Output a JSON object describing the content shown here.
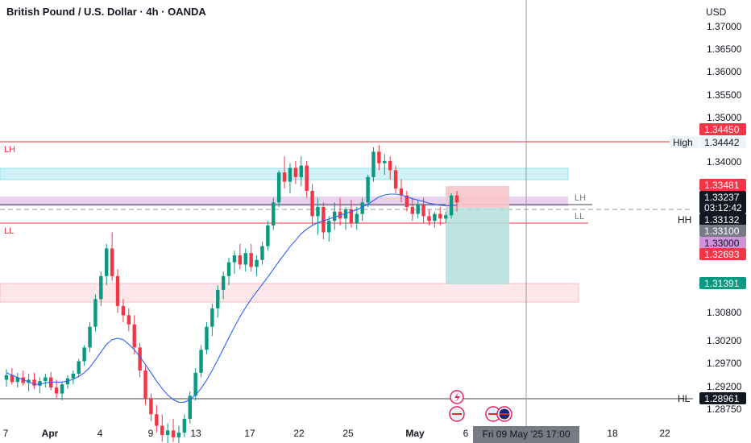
{
  "header": {
    "title": "British Pound / U.S. Dollar · 4h · OANDA",
    "currency": "USD"
  },
  "chart_data": {
    "type": "candlestick",
    "price_ticks": [
      "1.37000",
      "1.36500",
      "1.36000",
      "1.35500",
      "1.35000",
      "1.34000",
      "1.30800",
      "1.30200",
      "1.29700",
      "1.29200",
      "1.28750"
    ],
    "price_tick_values": [
      1.37,
      1.365,
      1.36,
      1.355,
      1.35,
      1.34,
      1.308,
      1.302,
      1.297,
      1.292,
      1.2875
    ],
    "date_ticks": [
      {
        "label": "7",
        "day": 0
      },
      {
        "label": "Apr",
        "day": 1
      },
      {
        "label": "4",
        "day": 4
      },
      {
        "label": "9",
        "day": 9
      },
      {
        "label": "13",
        "day": 13
      },
      {
        "label": "17",
        "day": 17
      },
      {
        "label": "22",
        "day": 22
      },
      {
        "label": "25",
        "day": 25
      },
      {
        "label": "May",
        "day": 31
      },
      {
        "label": "6",
        "day": 36
      },
      {
        "label": "18",
        "day": 48
      },
      {
        "label": "22",
        "day": 52
      }
    ],
    "price_badges": [
      {
        "value": "1.34450",
        "bg": "#f23645",
        "fg": "#ffffff"
      },
      {
        "value": "1.34442",
        "bg": "#f0f3fa",
        "fg": "#131722",
        "prefix": "High"
      },
      {
        "value": "1.33481",
        "bg": "#f23645",
        "fg": "#ffffff"
      },
      {
        "value": "1.33237",
        "bg": "#131722",
        "fg": "#ffffff"
      },
      {
        "value": "03:12:42",
        "bg": "#131722",
        "fg": "#ffffff"
      },
      {
        "value": "1.33132",
        "bg": "#131722",
        "fg": "#ffffff",
        "prefix": "HH"
      },
      {
        "value": "1.33100",
        "bg": "#787b86",
        "fg": "#ffffff"
      },
      {
        "value": "1.33000",
        "bg": "#ce93d8",
        "fg": "#131722"
      },
      {
        "value": "1.32693",
        "bg": "#f23645",
        "fg": "#ffffff"
      },
      {
        "value": "1.31391",
        "bg": "#089981",
        "fg": "#ffffff"
      },
      {
        "value": "1.28961",
        "bg": "#131722",
        "fg": "#ffffff",
        "prefix": "HL"
      }
    ],
    "annotations": [
      {
        "text": "LH",
        "color": "#f23645"
      },
      {
        "text": "LL",
        "color": "#f23645"
      },
      {
        "text": "LH",
        "color": "#787b86"
      },
      {
        "text": "LL",
        "color": "#787b86"
      }
    ],
    "crosshair_date": "Fri 09 May '25   17:00",
    "candles_ohlc": [
      [
        1.2935,
        1.2958,
        1.292,
        1.2945
      ],
      [
        1.2945,
        1.296,
        1.2925,
        1.293
      ],
      [
        1.293,
        1.295,
        1.2918,
        1.294
      ],
      [
        1.294,
        1.2955,
        1.2922,
        1.2928
      ],
      [
        1.2928,
        1.2948,
        1.291,
        1.2935
      ],
      [
        1.2935,
        1.295,
        1.2915,
        1.2922
      ],
      [
        1.2922,
        1.294,
        1.2905,
        1.2932
      ],
      [
        1.2932,
        1.2948,
        1.2918,
        1.294
      ],
      [
        1.294,
        1.2952,
        1.2912,
        1.2918
      ],
      [
        1.2918,
        1.2935,
        1.2895,
        1.2905
      ],
      [
        1.2905,
        1.293,
        1.289,
        1.2925
      ],
      [
        1.2925,
        1.2945,
        1.2915,
        1.2938
      ],
      [
        1.2938,
        1.2955,
        1.2925,
        1.2948
      ],
      [
        1.2948,
        1.298,
        1.294,
        1.2975
      ],
      [
        1.2975,
        1.301,
        1.2965,
        1.3005
      ],
      [
        1.3005,
        1.306,
        1.2995,
        1.305
      ],
      [
        1.305,
        1.312,
        1.304,
        1.311
      ],
      [
        1.311,
        1.317,
        1.3095,
        1.316
      ],
      [
        1.316,
        1.323,
        1.314,
        1.322
      ],
      [
        1.322,
        1.3255,
        1.315,
        1.316
      ],
      [
        1.316,
        1.3175,
        1.308,
        1.3095
      ],
      [
        1.3095,
        1.311,
        1.306,
        1.3075
      ],
      [
        1.3075,
        1.309,
        1.304,
        1.3055
      ],
      [
        1.3055,
        1.3075,
        1.299,
        1.3005
      ],
      [
        1.3005,
        1.3015,
        1.294,
        1.2955
      ],
      [
        1.2955,
        1.2965,
        1.288,
        1.2895
      ],
      [
        1.2895,
        1.2905,
        1.2845,
        1.286
      ],
      [
        1.286,
        1.288,
        1.282,
        1.2835
      ],
      [
        1.2835,
        1.286,
        1.28,
        1.2815
      ],
      [
        1.2815,
        1.284,
        1.279,
        1.2825
      ],
      [
        1.2825,
        1.285,
        1.28,
        1.281
      ],
      [
        1.281,
        1.2835,
        1.279,
        1.282
      ],
      [
        1.282,
        1.286,
        1.281,
        1.285
      ],
      [
        1.285,
        1.291,
        1.284,
        1.29
      ],
      [
        1.29,
        1.296,
        1.289,
        1.295
      ],
      [
        1.295,
        1.301,
        1.294,
        1.3
      ],
      [
        1.3,
        1.306,
        1.299,
        1.305
      ],
      [
        1.305,
        1.31,
        1.303,
        1.309
      ],
      [
        1.309,
        1.314,
        1.307,
        1.313
      ],
      [
        1.313,
        1.317,
        1.311,
        1.316
      ],
      [
        1.316,
        1.32,
        1.314,
        1.319
      ],
      [
        1.319,
        1.3215,
        1.3165,
        1.3205
      ],
      [
        1.3205,
        1.323,
        1.3175,
        1.3185
      ],
      [
        1.3185,
        1.322,
        1.317,
        1.321
      ],
      [
        1.321,
        1.323,
        1.317,
        1.318
      ],
      [
        1.318,
        1.3205,
        1.316,
        1.3195
      ],
      [
        1.3195,
        1.3235,
        1.3185,
        1.3225
      ],
      [
        1.3225,
        1.328,
        1.3215,
        1.327
      ],
      [
        1.327,
        1.333,
        1.326,
        1.332
      ],
      [
        1.332,
        1.339,
        1.331,
        1.3385
      ],
      [
        1.3385,
        1.342,
        1.335,
        1.3365
      ],
      [
        1.3365,
        1.3405,
        1.334,
        1.3395
      ],
      [
        1.3395,
        1.341,
        1.336,
        1.3375
      ],
      [
        1.3375,
        1.342,
        1.3355,
        1.34
      ],
      [
        1.34,
        1.341,
        1.333,
        1.3345
      ],
      [
        1.3345,
        1.336,
        1.327,
        1.329
      ],
      [
        1.329,
        1.333,
        1.325,
        1.331
      ],
      [
        1.331,
        1.332,
        1.324,
        1.3255
      ],
      [
        1.3255,
        1.329,
        1.3235,
        1.328
      ],
      [
        1.328,
        1.332,
        1.326,
        1.33
      ],
      [
        1.33,
        1.333,
        1.327,
        1.3285
      ],
      [
        1.3285,
        1.331,
        1.326,
        1.3305
      ],
      [
        1.3305,
        1.3325,
        1.3265,
        1.3275
      ],
      [
        1.3275,
        1.331,
        1.326,
        1.3295
      ],
      [
        1.3295,
        1.333,
        1.328,
        1.332
      ],
      [
        1.332,
        1.338,
        1.331,
        1.3375
      ],
      [
        1.3375,
        1.344,
        1.3365,
        1.343
      ],
      [
        1.343,
        1.3445,
        1.339,
        1.3405
      ],
      [
        1.3405,
        1.3425,
        1.338,
        1.341
      ],
      [
        1.341,
        1.342,
        1.337,
        1.339
      ],
      [
        1.339,
        1.34,
        1.334,
        1.335
      ],
      [
        1.335,
        1.337,
        1.332,
        1.3335
      ],
      [
        1.3335,
        1.3345,
        1.33,
        1.331
      ],
      [
        1.331,
        1.333,
        1.328,
        1.3295
      ],
      [
        1.3295,
        1.3325,
        1.3285,
        1.3315
      ],
      [
        1.3315,
        1.333,
        1.3275,
        1.329
      ],
      [
        1.329,
        1.3305,
        1.327,
        1.328
      ],
      [
        1.328,
        1.33,
        1.3265,
        1.3295
      ],
      [
        1.3295,
        1.331,
        1.327,
        1.3285
      ],
      [
        1.3285,
        1.33,
        1.3275,
        1.3292
      ],
      [
        1.3292,
        1.334,
        1.3285,
        1.3335
      ],
      [
        1.3335,
        1.3345,
        1.33,
        1.332
      ]
    ],
    "ma_values": [
      1.295,
      1.2945,
      1.294,
      1.2935,
      1.293,
      1.2925,
      1.2925,
      1.2928,
      1.293,
      1.293,
      1.293,
      1.2932,
      1.2936,
      1.2942,
      1.295,
      1.2962,
      1.2978,
      1.2995,
      1.3012,
      1.3022,
      1.3025,
      1.3022,
      1.3012,
      1.3,
      1.2985,
      1.2968,
      1.295,
      1.2932,
      1.2916,
      1.2902,
      1.2892,
      1.2886,
      1.2886,
      1.2892,
      1.2902,
      1.2916,
      1.2934,
      1.2955,
      1.2978,
      1.3002,
      1.3026,
      1.305,
      1.3072,
      1.3092,
      1.311,
      1.3126,
      1.3142,
      1.3158,
      1.3175,
      1.3192,
      1.3208,
      1.3224,
      1.3238,
      1.3252,
      1.3262,
      1.327,
      1.3276,
      1.328,
      1.3284,
      1.3288,
      1.3292,
      1.3296,
      1.33,
      1.3304,
      1.331,
      1.3316,
      1.3324,
      1.3332,
      1.3336,
      1.3338,
      1.3338,
      1.3336,
      1.3332,
      1.3328,
      1.3325,
      1.3322,
      1.3318,
      1.3316,
      1.3314,
      1.3313,
      1.3313,
      1.3314
    ]
  }
}
